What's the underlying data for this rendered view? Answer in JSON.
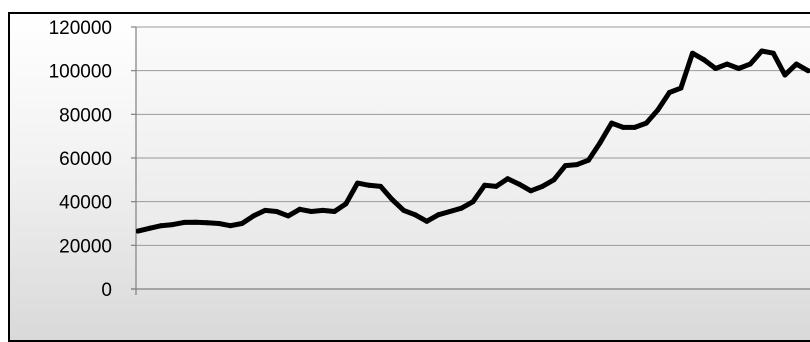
{
  "chart_data": {
    "type": "line",
    "title": "",
    "xlabel": "",
    "ylabel": "",
    "ylim": [
      0,
      120000
    ],
    "y_ticks": [
      "0",
      "20000",
      "40000",
      "60000",
      "80000",
      "100000",
      "120000"
    ],
    "grid": true,
    "legend": "none",
    "colors": {
      "line": "#000000",
      "grid": "#9a9a9a",
      "frame": "#000000"
    },
    "series": [
      {
        "values": [
          26500,
          27800,
          29000,
          29500,
          30500,
          30600,
          30300,
          30000,
          29000,
          30000,
          33500,
          36000,
          35500,
          33500,
          36500,
          35500,
          36000,
          35500,
          39000,
          48500,
          47500,
          47000,
          41000,
          36000,
          34000,
          31000,
          34000,
          35500,
          37000,
          40000,
          47500,
          47000,
          50500,
          48000,
          45000,
          47000,
          50000,
          56500,
          57000,
          59000,
          67000,
          76000,
          74000,
          74000,
          76000,
          82000,
          90000,
          92000,
          108000,
          105000,
          101000,
          103000,
          101000,
          103000,
          109000,
          108000,
          98000,
          103000,
          100000
        ]
      }
    ]
  }
}
